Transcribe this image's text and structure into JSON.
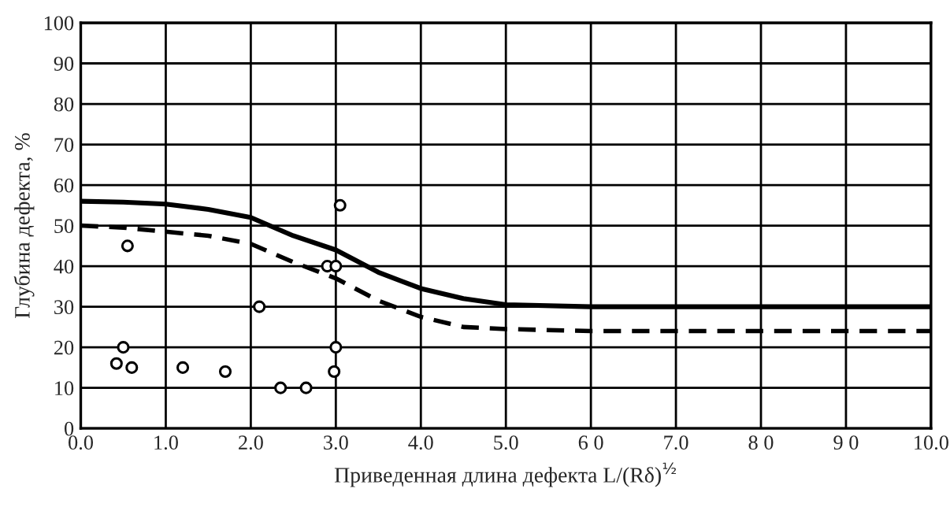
{
  "chart_data": {
    "type": "line",
    "xlabel": "Приведенная длина дефекта L/(Rδ)$^{½}$",
    "ylabel": "Глубина дефекта, %",
    "xlim": [
      0,
      10
    ],
    "ylim": [
      0,
      100
    ],
    "xticks": [
      {
        "value": 0,
        "label": "0.0"
      },
      {
        "value": 1,
        "label": "1.0"
      },
      {
        "value": 2,
        "label": "2.0"
      },
      {
        "value": 3,
        "label": "3.0"
      },
      {
        "value": 4,
        "label": "4.0"
      },
      {
        "value": 5,
        "label": "5.0"
      },
      {
        "value": 6,
        "label": "6 0"
      },
      {
        "value": 7,
        "label": "7.0"
      },
      {
        "value": 8,
        "label": "8 0"
      },
      {
        "value": 9,
        "label": "9 0"
      },
      {
        "value": 10,
        "label": "10.0"
      }
    ],
    "yticks": [
      0,
      10,
      20,
      30,
      40,
      50,
      60,
      70,
      80,
      90,
      100
    ],
    "grid": true,
    "legend": false,
    "series": [
      {
        "color": "#000000",
        "line_style": "solid",
        "marker": "none",
        "x": [
          0,
          0.5,
          1,
          1.5,
          2,
          2.5,
          3,
          3.5,
          4,
          4.5,
          5,
          6,
          7,
          8,
          9,
          10
        ],
        "values": [
          56,
          55.8,
          55.3,
          54,
          52,
          47.5,
          44,
          38.5,
          34.5,
          32,
          30.5,
          30,
          30,
          30,
          30,
          30
        ]
      },
      {
        "color": "#000000",
        "line_style": "dashed",
        "marker": "none",
        "x": [
          0,
          0.5,
          1,
          1.5,
          2,
          2.5,
          3,
          3.5,
          4,
          4.5,
          5,
          6,
          7,
          8,
          9,
          10
        ],
        "values": [
          50,
          49.5,
          48.5,
          47.5,
          45.5,
          41,
          37,
          31.5,
          27.5,
          25,
          24.5,
          24,
          24,
          24,
          24,
          24
        ]
      },
      {
        "type": "scatter",
        "color": "#000000",
        "marker": "circle",
        "x": [
          0.42,
          0.5,
          0.55,
          0.6,
          1.2,
          1.7,
          2.1,
          2.35,
          2.65,
          2.9,
          3.0,
          3.05,
          3.0,
          2.98
        ],
        "values": [
          16,
          20,
          45,
          15,
          15,
          14,
          30,
          10,
          10,
          40,
          40,
          55,
          20,
          14
        ]
      }
    ]
  }
}
